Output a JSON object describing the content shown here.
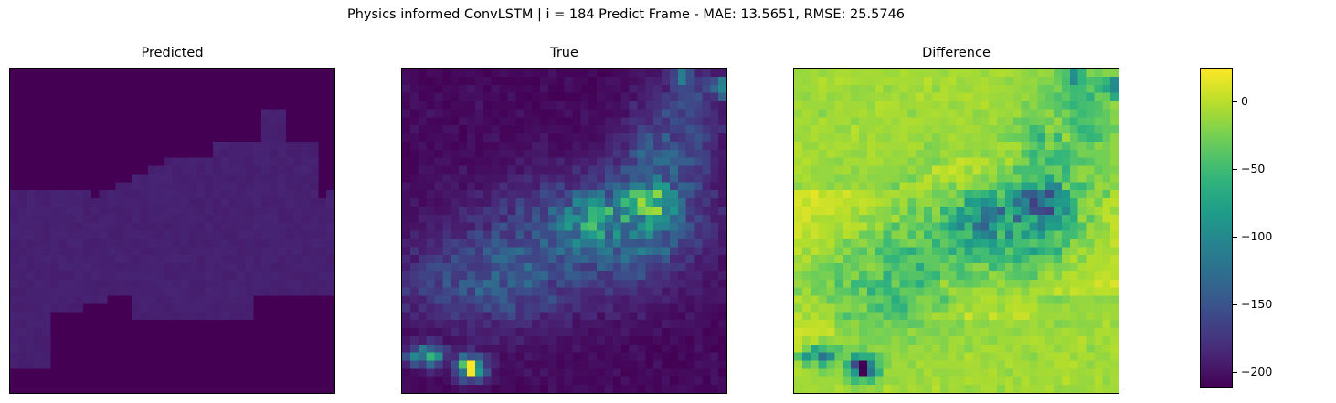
{
  "suptitle": "Physics informed ConvLSTM | i = 184 Predict Frame - MAE: 13.5651, RMSE: 25.5746",
  "panels": [
    {
      "title": "Predicted"
    },
    {
      "title": "True"
    },
    {
      "title": "Difference"
    }
  ],
  "chart_data": {
    "type": "heatmap",
    "colormap": "viridis",
    "grid_size": [
      40,
      40
    ],
    "colorbar": {
      "range": [
        -212,
        25
      ],
      "ticks": [
        {
          "value": 0,
          "label": "0"
        },
        {
          "value": -50,
          "label": "−50"
        },
        {
          "value": -100,
          "label": "−100"
        },
        {
          "value": -150,
          "label": "−150"
        },
        {
          "value": -200,
          "label": "−200"
        }
      ]
    }
  },
  "colors": {
    "viridis": [
      "#440154",
      "#482878",
      "#3e4989",
      "#31688e",
      "#26828e",
      "#1f9e89",
      "#35b779",
      "#6ece58",
      "#b5de2b",
      "#fde725"
    ]
  }
}
